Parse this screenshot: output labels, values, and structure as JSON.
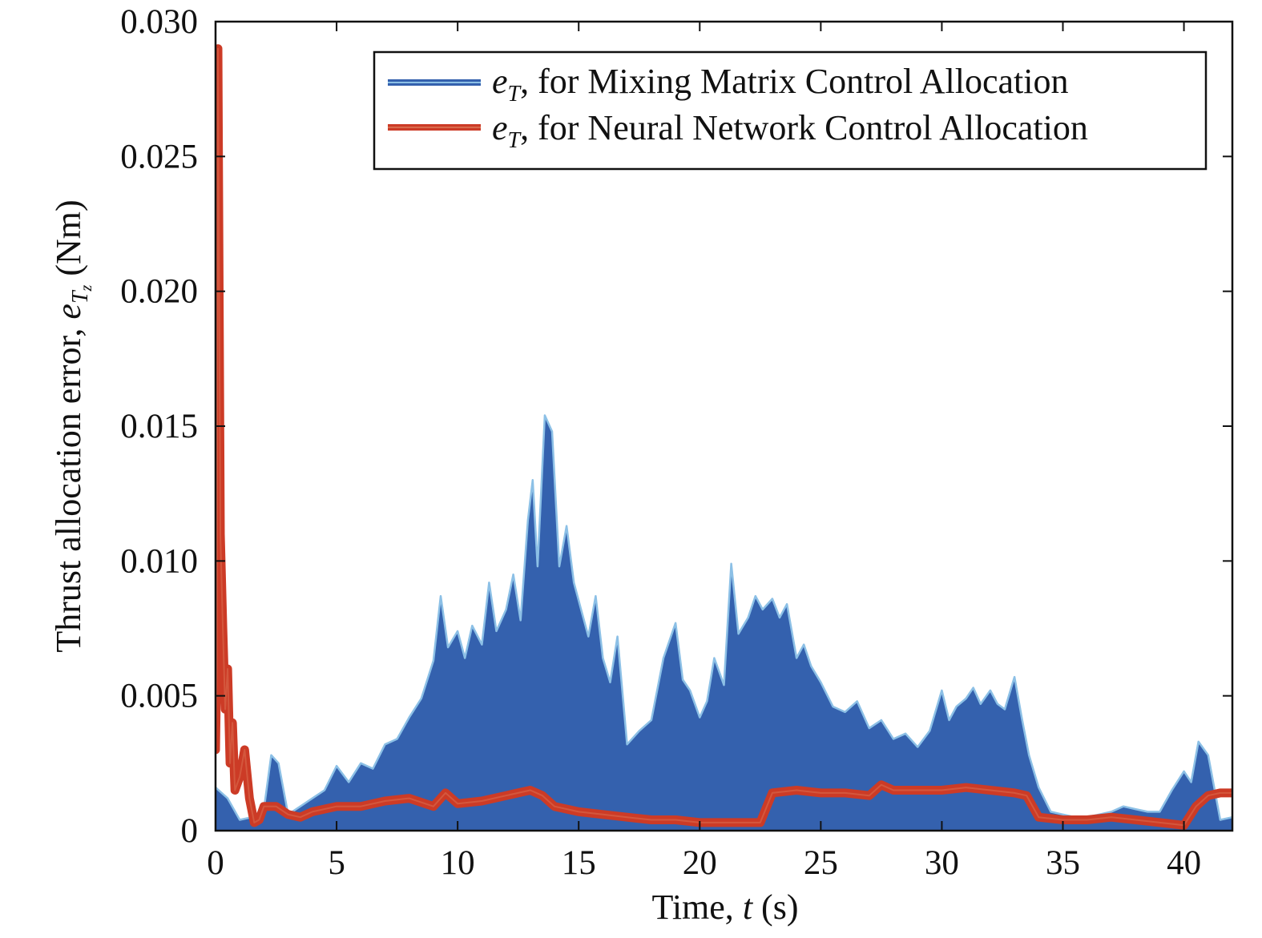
{
  "chart_data": {
    "type": "line",
    "title": "",
    "xlabel": {
      "prefix": "Time, ",
      "var": "t",
      "suffix": " (s)"
    },
    "ylabel": {
      "prefix": "Thrust allocation error, ",
      "var": "e",
      "sub": "T",
      "subsub": "z",
      "suffix": " (Nm)"
    },
    "xlim": [
      0,
      42
    ],
    "ylim": [
      0,
      0.03
    ],
    "xticks": [
      0,
      5,
      10,
      15,
      20,
      25,
      30,
      35,
      40
    ],
    "xtick_labels": [
      "0",
      "5",
      "10",
      "15",
      "20",
      "25",
      "30",
      "35",
      "40"
    ],
    "yticks": [
      0,
      0.005,
      0.01,
      0.015,
      0.02,
      0.025,
      0.03
    ],
    "ytick_labels": [
      "0",
      "0.005",
      "0.010",
      "0.015",
      "0.020",
      "0.025",
      "0.030"
    ],
    "grid": false,
    "legend_position": "top-right",
    "series": [
      {
        "name": "eT, for Mixing Matrix Control Allocation",
        "legend": {
          "var": "e",
          "sub": "T",
          "text": ", for Mixing Matrix Control Allocation"
        },
        "color": "#3461ae",
        "edge_color": "#8cc0e6",
        "style": "filled-envelope",
        "x": [
          0,
          0.5,
          1,
          1.5,
          2,
          2.3,
          2.6,
          3,
          3.5,
          4,
          4.5,
          5,
          5.5,
          6,
          6.5,
          7,
          7.5,
          8,
          8.5,
          9,
          9.3,
          9.6,
          10,
          10.3,
          10.6,
          11,
          11.3,
          11.6,
          12,
          12.3,
          12.6,
          12.9,
          13.1,
          13.3,
          13.6,
          13.9,
          14.2,
          14.5,
          14.8,
          15.1,
          15.4,
          15.7,
          16,
          16.3,
          16.6,
          17,
          17.5,
          18,
          18.5,
          19,
          19.3,
          19.6,
          20,
          20.3,
          20.6,
          21,
          21.3,
          21.6,
          22,
          22.3,
          22.6,
          23,
          23.3,
          23.6,
          24,
          24.3,
          24.6,
          25,
          25.5,
          26,
          26.5,
          27,
          27.5,
          28,
          28.5,
          29,
          29.5,
          30,
          30.3,
          30.6,
          31,
          31.3,
          31.6,
          32,
          32.3,
          32.6,
          33,
          33.3,
          33.6,
          34,
          34.5,
          35,
          35.5,
          36,
          36.5,
          37,
          37.5,
          38,
          38.5,
          39,
          39.5,
          40,
          40.3,
          40.6,
          41,
          41.5,
          42
        ],
        "y": [
          0.0016,
          0.0012,
          0.0004,
          0.0005,
          0.0008,
          0.0028,
          0.0025,
          0.0006,
          0.0009,
          0.0012,
          0.0015,
          0.0024,
          0.0018,
          0.0025,
          0.0023,
          0.0032,
          0.0034,
          0.0042,
          0.0049,
          0.0063,
          0.0087,
          0.0068,
          0.0074,
          0.0064,
          0.0076,
          0.0069,
          0.0092,
          0.0074,
          0.0082,
          0.0095,
          0.0078,
          0.0115,
          0.013,
          0.0098,
          0.0154,
          0.0148,
          0.0098,
          0.0113,
          0.0092,
          0.0082,
          0.0072,
          0.0087,
          0.0064,
          0.0055,
          0.0072,
          0.0032,
          0.0037,
          0.0041,
          0.0064,
          0.0077,
          0.0056,
          0.0052,
          0.0042,
          0.0048,
          0.0064,
          0.0054,
          0.0099,
          0.0073,
          0.0079,
          0.0087,
          0.0082,
          0.0086,
          0.0079,
          0.0084,
          0.0064,
          0.0069,
          0.0061,
          0.0055,
          0.0046,
          0.0044,
          0.0048,
          0.0038,
          0.0041,
          0.0034,
          0.0036,
          0.0031,
          0.0037,
          0.0052,
          0.0041,
          0.0046,
          0.0049,
          0.0053,
          0.0047,
          0.0052,
          0.0047,
          0.0045,
          0.0057,
          0.0042,
          0.0028,
          0.0016,
          0.0007,
          0.0006,
          0.0005,
          0.0005,
          0.0006,
          0.0007,
          0.0009,
          0.0008,
          0.0007,
          0.0007,
          0.0015,
          0.0022,
          0.0018,
          0.0033,
          0.0028,
          0.0004,
          0.0005
        ]
      },
      {
        "name": "eT, for Neural Network Control Allocation",
        "legend": {
          "var": "e",
          "sub": "T",
          "text": ", for Neural Network Control Allocation"
        },
        "color": "#cc3b26",
        "edge_color": "#d96a4c",
        "style": "line",
        "x": [
          0,
          0.05,
          0.1,
          0.15,
          0.2,
          0.3,
          0.4,
          0.5,
          0.6,
          0.7,
          0.8,
          1,
          1.2,
          1.4,
          1.6,
          1.8,
          2,
          2.5,
          3,
          3.5,
          4,
          5,
          6,
          7,
          8,
          9,
          9.5,
          10,
          11,
          12,
          13,
          13.5,
          14,
          15,
          16,
          17,
          18,
          19,
          20,
          21,
          22,
          22.5,
          23,
          24,
          25,
          26,
          27,
          27.5,
          28,
          29,
          30,
          31,
          32,
          33,
          33.5,
          34,
          35,
          36,
          37,
          38,
          39,
          40,
          40.5,
          41,
          41.5,
          42
        ],
        "y": [
          0.003,
          0.006,
          0.029,
          0.02,
          0.011,
          0.0075,
          0.0045,
          0.006,
          0.0025,
          0.004,
          0.0015,
          0.002,
          0.003,
          0.0012,
          0.0003,
          0.0004,
          0.0009,
          0.0009,
          0.0006,
          0.0005,
          0.0007,
          0.0009,
          0.0009,
          0.0011,
          0.0012,
          0.0009,
          0.0014,
          0.001,
          0.0011,
          0.0013,
          0.0015,
          0.0013,
          0.0009,
          0.0007,
          0.0006,
          0.0005,
          0.0004,
          0.0004,
          0.0003,
          0.0003,
          0.0003,
          0.0003,
          0.0014,
          0.0015,
          0.0014,
          0.0014,
          0.0013,
          0.0017,
          0.0015,
          0.0015,
          0.0015,
          0.0016,
          0.0015,
          0.0014,
          0.0013,
          0.0005,
          0.0004,
          0.0004,
          0.0005,
          0.0004,
          0.0003,
          0.0002,
          0.0009,
          0.0013,
          0.0014,
          0.0014
        ]
      }
    ]
  }
}
